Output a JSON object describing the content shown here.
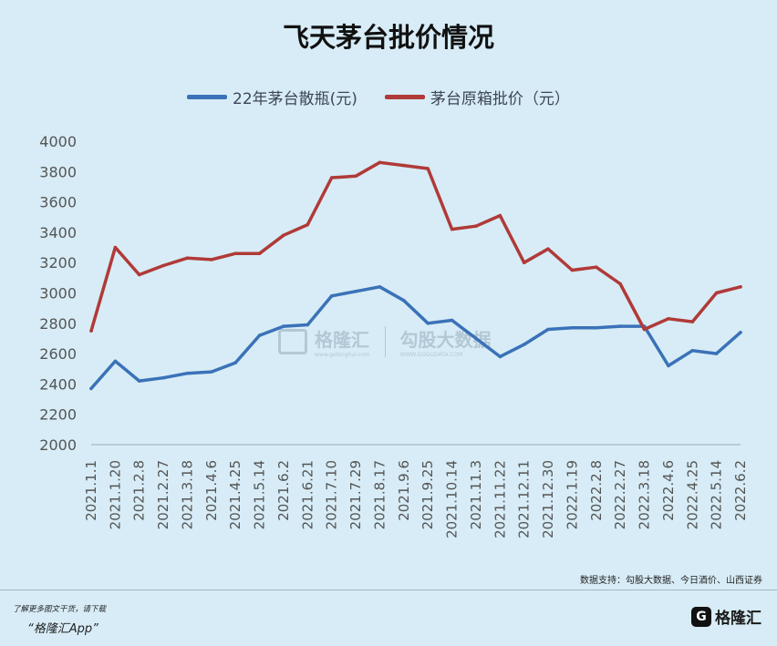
{
  "chart_data": {
    "type": "line",
    "title": "飞天茅台批价情况",
    "xlabel": "",
    "ylabel": "",
    "ylim": [
      2000,
      4000
    ],
    "y_ticks": [
      2000,
      2200,
      2400,
      2600,
      2800,
      3000,
      3200,
      3400,
      3600,
      3800,
      4000
    ],
    "x_tick_labels": [
      "2021.1.1",
      "2021.1.20",
      "2021.2.8",
      "2021.2.27",
      "2021.3.18",
      "2021.4.6",
      "2021.4.25",
      "2021.5.14",
      "2021.6.2",
      "2021.6.21",
      "2021.7.10",
      "2021.7.29",
      "2021.8.17",
      "2021.9.6",
      "2021.9.25",
      "2021.10.14",
      "2021.11.3",
      "2021.11.22",
      "2021.12.11",
      "2021.12.30",
      "2022.1.19",
      "2022.2.8",
      "2022.2.27",
      "2022.3.18",
      "2022.4.6",
      "2022.4.25",
      "2022.5.14",
      "2022.6.2"
    ],
    "grid": false,
    "legend_position": "top",
    "series": [
      {
        "name": "22年茅台散瓶(元)",
        "color": "#3a72b8",
        "x": [
          0,
          1,
          2,
          3,
          4,
          5,
          6,
          7,
          8,
          9,
          10,
          11,
          12,
          13,
          14,
          15,
          16,
          17,
          18,
          19,
          20,
          21,
          22,
          23,
          24,
          25,
          26,
          27
        ],
        "values": [
          2370,
          2550,
          2420,
          2440,
          2470,
          2480,
          2540,
          2720,
          2780,
          2790,
          2980,
          3010,
          3040,
          2950,
          2800,
          2820,
          2700,
          2580,
          2660,
          2760,
          2770,
          2770,
          2780,
          2780,
          2520,
          2620,
          2600,
          2740
        ]
      },
      {
        "name": "茅台原箱批价（元）",
        "color": "#b03a38",
        "x": [
          0,
          1,
          2,
          3,
          4,
          5,
          6,
          7,
          8,
          9,
          10,
          11,
          12,
          13,
          14,
          15,
          16,
          17,
          18,
          19,
          20,
          21,
          22,
          23,
          24,
          25,
          26,
          27
        ],
        "values": [
          2750,
          3300,
          3120,
          3180,
          3230,
          3220,
          3260,
          3260,
          3380,
          3450,
          3760,
          3770,
          3860,
          3840,
          3820,
          3420,
          3440,
          3510,
          3200,
          3290,
          3150,
          3170,
          3060,
          2760,
          2830,
          2810,
          3000,
          3040
        ]
      }
    ]
  },
  "footer": {
    "source": "数据支持：勾股大数据、今日酒价、山西证券",
    "note": "了解更多图文干货，请下载",
    "app": "“格隆汇App”",
    "logo_text": "格隆汇",
    "logo_icon": "gelonghui-logo-icon"
  },
  "watermark": {
    "left": "格隆汇",
    "right": "勾股大数据",
    "left_sub": "www.gelonghui.com",
    "right_sub": "WWW.GOGUDATA.COM"
  }
}
